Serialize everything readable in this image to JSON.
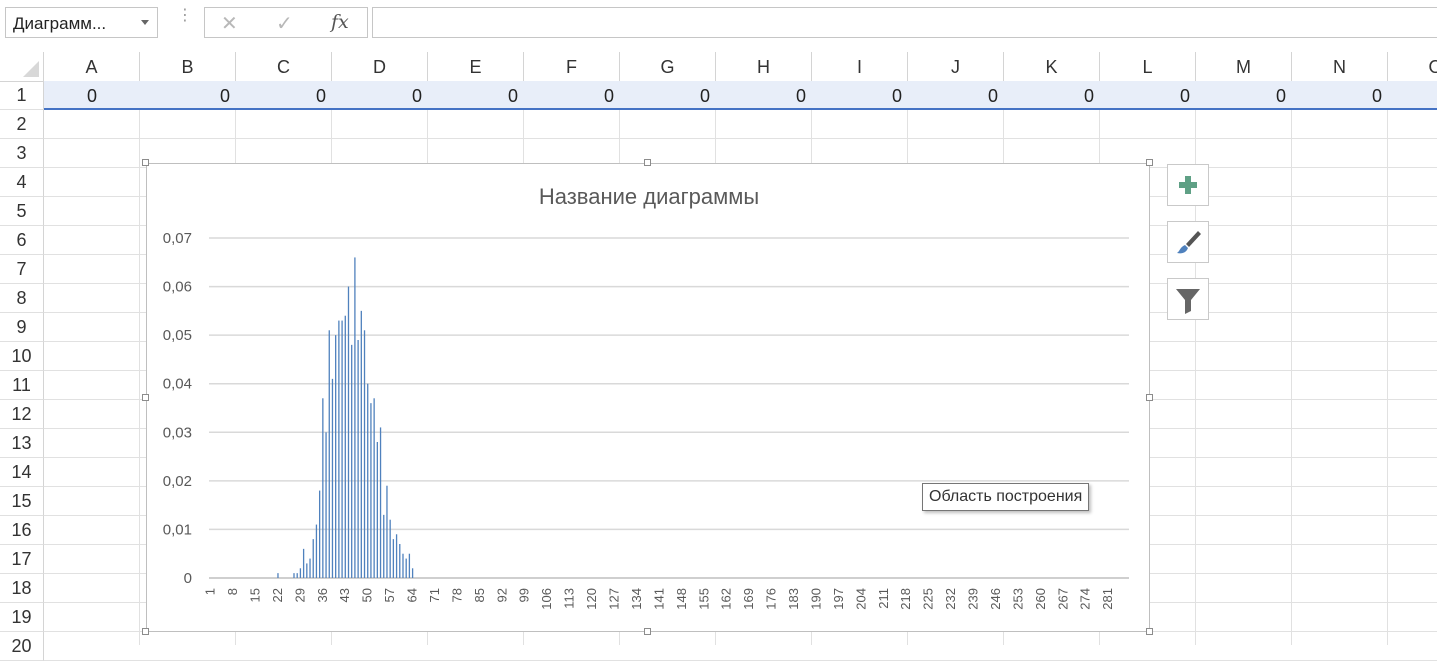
{
  "namebox": {
    "value": "Диаграмм..."
  },
  "formula_bar": {
    "cancel_icon": "x-icon",
    "enter_icon": "check-icon",
    "fx_label": "fx",
    "value": ""
  },
  "columns": [
    "A",
    "B",
    "C",
    "D",
    "E",
    "F",
    "G",
    "H",
    "I",
    "J",
    "K",
    "L",
    "M",
    "N",
    "O"
  ],
  "rows": [
    "1",
    "2",
    "3",
    "4",
    "5",
    "6",
    "7",
    "8",
    "9",
    "10",
    "11",
    "12",
    "13",
    "14",
    "15",
    "16",
    "17",
    "18",
    "19",
    "20"
  ],
  "row1_values": [
    "0",
    "0",
    "0",
    "0",
    "0",
    "0",
    "0",
    "0",
    "0",
    "0",
    "0",
    "0",
    "0",
    "0"
  ],
  "chart_buttons": {
    "add": "plus-icon",
    "style": "brush-icon",
    "filter": "funnel-icon"
  },
  "tooltip": "Область построения",
  "chart_data": {
    "type": "bar",
    "title": "Название диаграммы",
    "xlabel": "",
    "ylabel": "",
    "ylim": [
      0,
      0.07
    ],
    "y_ticks": [
      "0,07",
      "0,06",
      "0,05",
      "0,04",
      "0,03",
      "0,02",
      "0,01",
      "0"
    ],
    "x_tick_labels": [
      "1",
      "8",
      "15",
      "22",
      "29",
      "36",
      "43",
      "50",
      "57",
      "64",
      "71",
      "78",
      "85",
      "92",
      "99",
      "106",
      "113",
      "120",
      "127",
      "134",
      "141",
      "148",
      "155",
      "162",
      "169",
      "176",
      "183",
      "190",
      "197",
      "204",
      "211",
      "218",
      "225",
      "232",
      "239",
      "246",
      "253",
      "260",
      "267",
      "274",
      "281"
    ],
    "x_range": [
      1,
      287
    ],
    "bar_color": "#4f81bd",
    "grid": true,
    "x": [
      22,
      27,
      28,
      29,
      30,
      31,
      32,
      33,
      34,
      35,
      36,
      37,
      38,
      39,
      40,
      41,
      42,
      43,
      44,
      45,
      46,
      47,
      48,
      49,
      50,
      51,
      52,
      53,
      54,
      55,
      56,
      57,
      58,
      59,
      60,
      61,
      62,
      63,
      64
    ],
    "values": [
      0.001,
      0.001,
      0.001,
      0.002,
      0.006,
      0.003,
      0.004,
      0.008,
      0.011,
      0.018,
      0.037,
      0.03,
      0.051,
      0.041,
      0.05,
      0.053,
      0.053,
      0.054,
      0.06,
      0.048,
      0.066,
      0.049,
      0.055,
      0.051,
      0.04,
      0.036,
      0.037,
      0.028,
      0.031,
      0.013,
      0.019,
      0.012,
      0.008,
      0.009,
      0.007,
      0.005,
      0.004,
      0.005,
      0.002
    ]
  }
}
